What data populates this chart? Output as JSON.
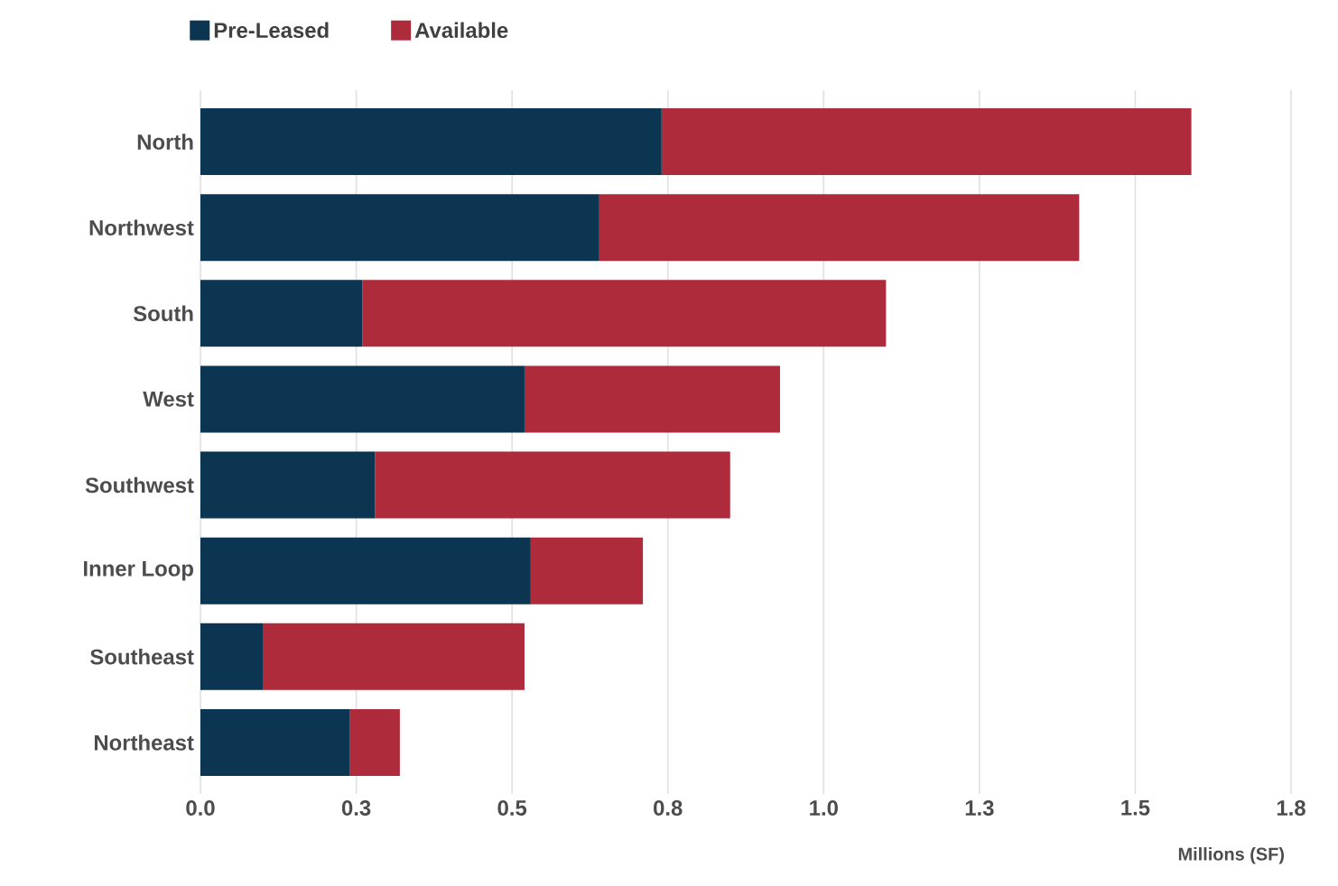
{
  "chart_data": {
    "type": "bar",
    "orientation": "horizontal",
    "stacked": true,
    "xlabel": "Millions (SF)",
    "categories": [
      "North",
      "Northwest",
      "South",
      "West",
      "Southwest",
      "Inner Loop",
      "Southeast",
      "Northeast"
    ],
    "series": [
      {
        "name": "Pre-Leased",
        "color": "#0b3550",
        "values": [
          0.74,
          0.64,
          0.26,
          0.52,
          0.28,
          0.53,
          0.1,
          0.24
        ]
      },
      {
        "name": "Available",
        "color": "#ae2b3b",
        "values": [
          0.85,
          0.77,
          0.84,
          0.41,
          0.57,
          0.18,
          0.42,
          0.08
        ]
      }
    ],
    "xlim": [
      0,
      1.75
    ],
    "xticks": [
      {
        "value": 0,
        "label": "0.0"
      },
      {
        "value": 0.25,
        "label": "0.3"
      },
      {
        "value": 0.5,
        "label": "0.5"
      },
      {
        "value": 0.75,
        "label": "0.8"
      },
      {
        "value": 1.0,
        "label": "1.0"
      },
      {
        "value": 1.25,
        "label": "1.3"
      },
      {
        "value": 1.5,
        "label": "1.5"
      },
      {
        "value": 1.75,
        "label": "1.8"
      }
    ],
    "grid": "x",
    "legend": "top left"
  }
}
